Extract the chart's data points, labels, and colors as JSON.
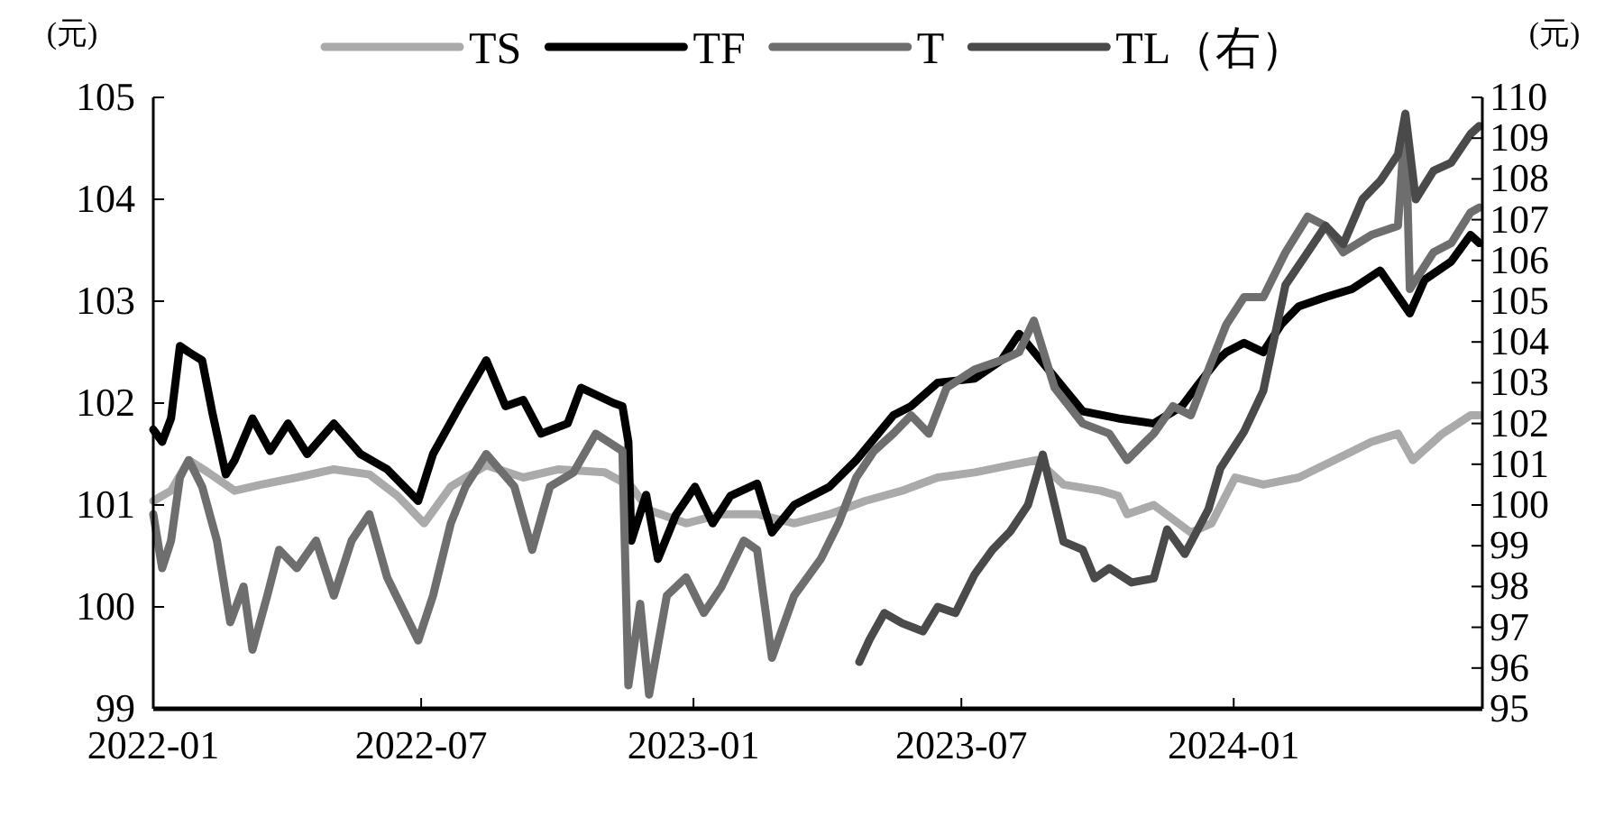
{
  "chart_data": {
    "type": "line",
    "ylabel": "(元)",
    "y2label": "(元)",
    "legend": "top",
    "grid": false,
    "line_style": "solid",
    "marker": "none",
    "xlim": [
      "2022-01-01",
      "2024-06-17"
    ],
    "xticks": [
      "2022-01",
      "2022-07",
      "2023-01",
      "2023-07",
      "2024-01"
    ],
    "ylim": [
      99,
      105
    ],
    "yticks": [
      99,
      100,
      101,
      102,
      103,
      104,
      105
    ],
    "y2lim": [
      95,
      110
    ],
    "y2ticks": [
      95,
      96,
      97,
      98,
      99,
      100,
      101,
      102,
      103,
      104,
      105,
      106,
      107,
      108,
      109,
      110
    ],
    "series": [
      {
        "name": "TS",
        "color": "#aaaaaa",
        "x": [
          "2022-01-01",
          "2022-01-13",
          "2022-01-25",
          "2022-02-07",
          "2022-02-25",
          "2022-03-15",
          "2022-04-08",
          "2022-05-03",
          "2022-05-27",
          "2022-06-15",
          "2022-07-03",
          "2022-07-21",
          "2022-08-14",
          "2022-09-08",
          "2022-10-02",
          "2022-11-02",
          "2022-11-20",
          "2022-12-02",
          "2022-12-27",
          "2023-01-20",
          "2023-02-13",
          "2023-03-10",
          "2023-04-03",
          "2023-04-27",
          "2023-05-22",
          "2023-06-15",
          "2023-07-10",
          "2023-08-03",
          "2023-08-21",
          "2023-09-08",
          "2023-10-03",
          "2023-10-15",
          "2023-10-21",
          "2023-11-08",
          "2023-12-03",
          "2023-12-17",
          "2024-01-02",
          "2024-01-21",
          "2024-02-14",
          "2024-03-09",
          "2024-04-03",
          "2024-04-21",
          "2024-05-01",
          "2024-05-21",
          "2024-06-09",
          "2024-06-15"
        ],
        "values": [
          101.04,
          101.14,
          101.44,
          101.32,
          101.14,
          101.2,
          101.27,
          101.35,
          101.3,
          101.09,
          100.82,
          101.18,
          101.39,
          101.27,
          101.35,
          101.32,
          101.18,
          100.95,
          100.82,
          100.91,
          100.91,
          100.82,
          100.91,
          101.04,
          101.14,
          101.27,
          101.32,
          101.39,
          101.44,
          101.2,
          101.14,
          101.09,
          100.91,
          101.0,
          100.73,
          100.82,
          101.27,
          101.2,
          101.27,
          101.44,
          101.62,
          101.7,
          101.44,
          101.7,
          101.88,
          101.88
        ]
      },
      {
        "name": "TF",
        "color": "#000000",
        "x": [
          "2022-01-01",
          "2022-01-07",
          "2022-01-13",
          "2022-01-19",
          "2022-01-25",
          "2022-02-03",
          "2022-02-10",
          "2022-02-19",
          "2022-02-25",
          "2022-03-09",
          "2022-03-21",
          "2022-04-02",
          "2022-04-15",
          "2022-05-03",
          "2022-05-21",
          "2022-06-08",
          "2022-06-29",
          "2022-07-09",
          "2022-07-27",
          "2022-08-14",
          "2022-08-27",
          "2022-09-08",
          "2022-09-20",
          "2022-10-08",
          "2022-10-17",
          "2022-11-08",
          "2022-11-14",
          "2022-11-18",
          "2022-11-20",
          "2022-11-30",
          "2022-12-08",
          "2022-12-20",
          "2023-01-02",
          "2023-01-14",
          "2023-01-26",
          "2023-02-13",
          "2023-02-23",
          "2023-03-10",
          "2023-04-03",
          "2023-04-21",
          "2023-05-16",
          "2023-05-28",
          "2023-06-15",
          "2023-07-10",
          "2023-07-28",
          "2023-08-09",
          "2023-09-21",
          "2023-10-15",
          "2023-11-08",
          "2023-11-27",
          "2023-12-09",
          "2023-12-21",
          "2023-12-27",
          "2024-01-08",
          "2024-01-21",
          "2024-02-02",
          "2024-02-14",
          "2024-03-03",
          "2024-03-21",
          "2024-04-09",
          "2024-04-29",
          "2024-05-09",
          "2024-05-27",
          "2024-06-09",
          "2024-06-15"
        ],
        "values": [
          101.74,
          101.62,
          101.85,
          102.56,
          102.5,
          102.42,
          101.9,
          101.3,
          101.44,
          101.85,
          101.53,
          101.8,
          101.5,
          101.8,
          101.5,
          101.35,
          101.04,
          101.5,
          101.97,
          102.42,
          101.97,
          102.03,
          101.7,
          101.8,
          102.15,
          102.0,
          101.97,
          101.62,
          100.65,
          101.1,
          100.47,
          100.9,
          101.18,
          100.82,
          101.09,
          101.21,
          100.73,
          101.0,
          101.18,
          101.44,
          101.88,
          101.97,
          102.2,
          102.24,
          102.42,
          102.68,
          101.92,
          101.85,
          101.8,
          101.97,
          102.2,
          102.42,
          102.5,
          102.59,
          102.5,
          102.77,
          102.95,
          103.04,
          103.12,
          103.3,
          102.88,
          103.21,
          103.39,
          103.65,
          103.57
        ]
      },
      {
        "name": "T",
        "color": "#6e6e6e",
        "x": [
          "2022-01-01",
          "2022-01-07",
          "2022-01-13",
          "2022-01-19",
          "2022-01-25",
          "2022-02-03",
          "2022-02-13",
          "2022-02-22",
          "2022-03-03",
          "2022-03-09",
          "2022-03-19",
          "2022-03-27",
          "2022-04-08",
          "2022-04-21",
          "2022-05-03",
          "2022-05-15",
          "2022-05-27",
          "2022-06-08",
          "2022-06-29",
          "2022-07-09",
          "2022-07-21",
          "2022-07-31",
          "2022-08-14",
          "2022-09-02",
          "2022-09-14",
          "2022-09-26",
          "2022-10-12",
          "2022-10-27",
          "2022-11-14",
          "2022-11-18",
          "2022-11-26",
          "2022-12-02",
          "2022-12-14",
          "2022-12-27",
          "2023-01-08",
          "2023-01-20",
          "2023-02-04",
          "2023-02-13",
          "2023-02-23",
          "2023-03-10",
          "2023-03-28",
          "2023-04-09",
          "2023-04-21",
          "2023-05-03",
          "2023-05-16",
          "2023-05-28",
          "2023-06-09",
          "2023-06-21",
          "2023-07-10",
          "2023-07-28",
          "2023-08-09",
          "2023-08-19",
          "2023-09-02",
          "2023-09-21",
          "2023-10-09",
          "2023-10-21",
          "2023-11-08",
          "2023-11-21",
          "2023-12-03",
          "2023-12-15",
          "2023-12-27",
          "2024-01-08",
          "2024-01-21",
          "2024-02-05",
          "2024-02-20",
          "2024-03-03",
          "2024-03-15",
          "2024-04-03",
          "2024-04-21",
          "2024-04-26",
          "2024-04-29",
          "2024-05-15",
          "2024-05-27",
          "2024-06-09",
          "2024-06-15"
        ],
        "values": [
          100.91,
          100.38,
          100.65,
          101.27,
          101.44,
          101.18,
          100.65,
          99.85,
          100.2,
          99.58,
          100.11,
          100.56,
          100.38,
          100.65,
          100.11,
          100.65,
          100.91,
          100.29,
          99.67,
          100.11,
          100.82,
          101.18,
          101.5,
          101.18,
          100.56,
          101.18,
          101.32,
          101.7,
          101.53,
          99.23,
          100.03,
          99.14,
          100.11,
          100.29,
          99.94,
          100.2,
          100.65,
          100.56,
          99.5,
          100.11,
          100.47,
          100.82,
          101.27,
          101.53,
          101.7,
          101.88,
          101.7,
          102.15,
          102.33,
          102.42,
          102.5,
          102.81,
          102.15,
          101.8,
          101.7,
          101.44,
          101.7,
          101.97,
          101.88,
          102.33,
          102.77,
          103.04,
          103.04,
          103.48,
          103.83,
          103.74,
          103.48,
          103.65,
          103.74,
          104.8,
          103.12,
          103.48,
          103.57,
          103.87,
          103.92
        ]
      },
      {
        "name": "TL（右）",
        "color": "#4a4a4a",
        "axis": "y2",
        "x": [
          "2023-04-23",
          "2023-04-30",
          "2023-05-10",
          "2023-05-22",
          "2023-06-05",
          "2023-06-15",
          "2023-06-27",
          "2023-07-10",
          "2023-07-22",
          "2023-08-03",
          "2023-08-15",
          "2023-08-25",
          "2023-09-08",
          "2023-09-21",
          "2023-09-29",
          "2023-10-09",
          "2023-10-24",
          "2023-11-08",
          "2023-11-17",
          "2023-11-29",
          "2023-12-15",
          "2023-12-23",
          "2024-01-08",
          "2024-01-21",
          "2024-02-05",
          "2024-02-20",
          "2024-03-03",
          "2024-03-15",
          "2024-03-28",
          "2024-04-09",
          "2024-04-21",
          "2024-04-26",
          "2024-05-03",
          "2024-05-15",
          "2024-05-27",
          "2024-06-09",
          "2024-06-15"
        ],
        "values": [
          96.15,
          96.7,
          97.35,
          97.1,
          96.9,
          97.5,
          97.35,
          98.3,
          98.9,
          99.35,
          100.0,
          101.24,
          99.1,
          98.9,
          98.2,
          98.45,
          98.1,
          98.2,
          99.4,
          98.8,
          99.9,
          100.9,
          101.8,
          102.8,
          105.4,
          106.2,
          106.85,
          106.4,
          107.5,
          107.95,
          108.6,
          109.6,
          107.5,
          108.2,
          108.4,
          109.1,
          109.3
        ]
      }
    ]
  }
}
